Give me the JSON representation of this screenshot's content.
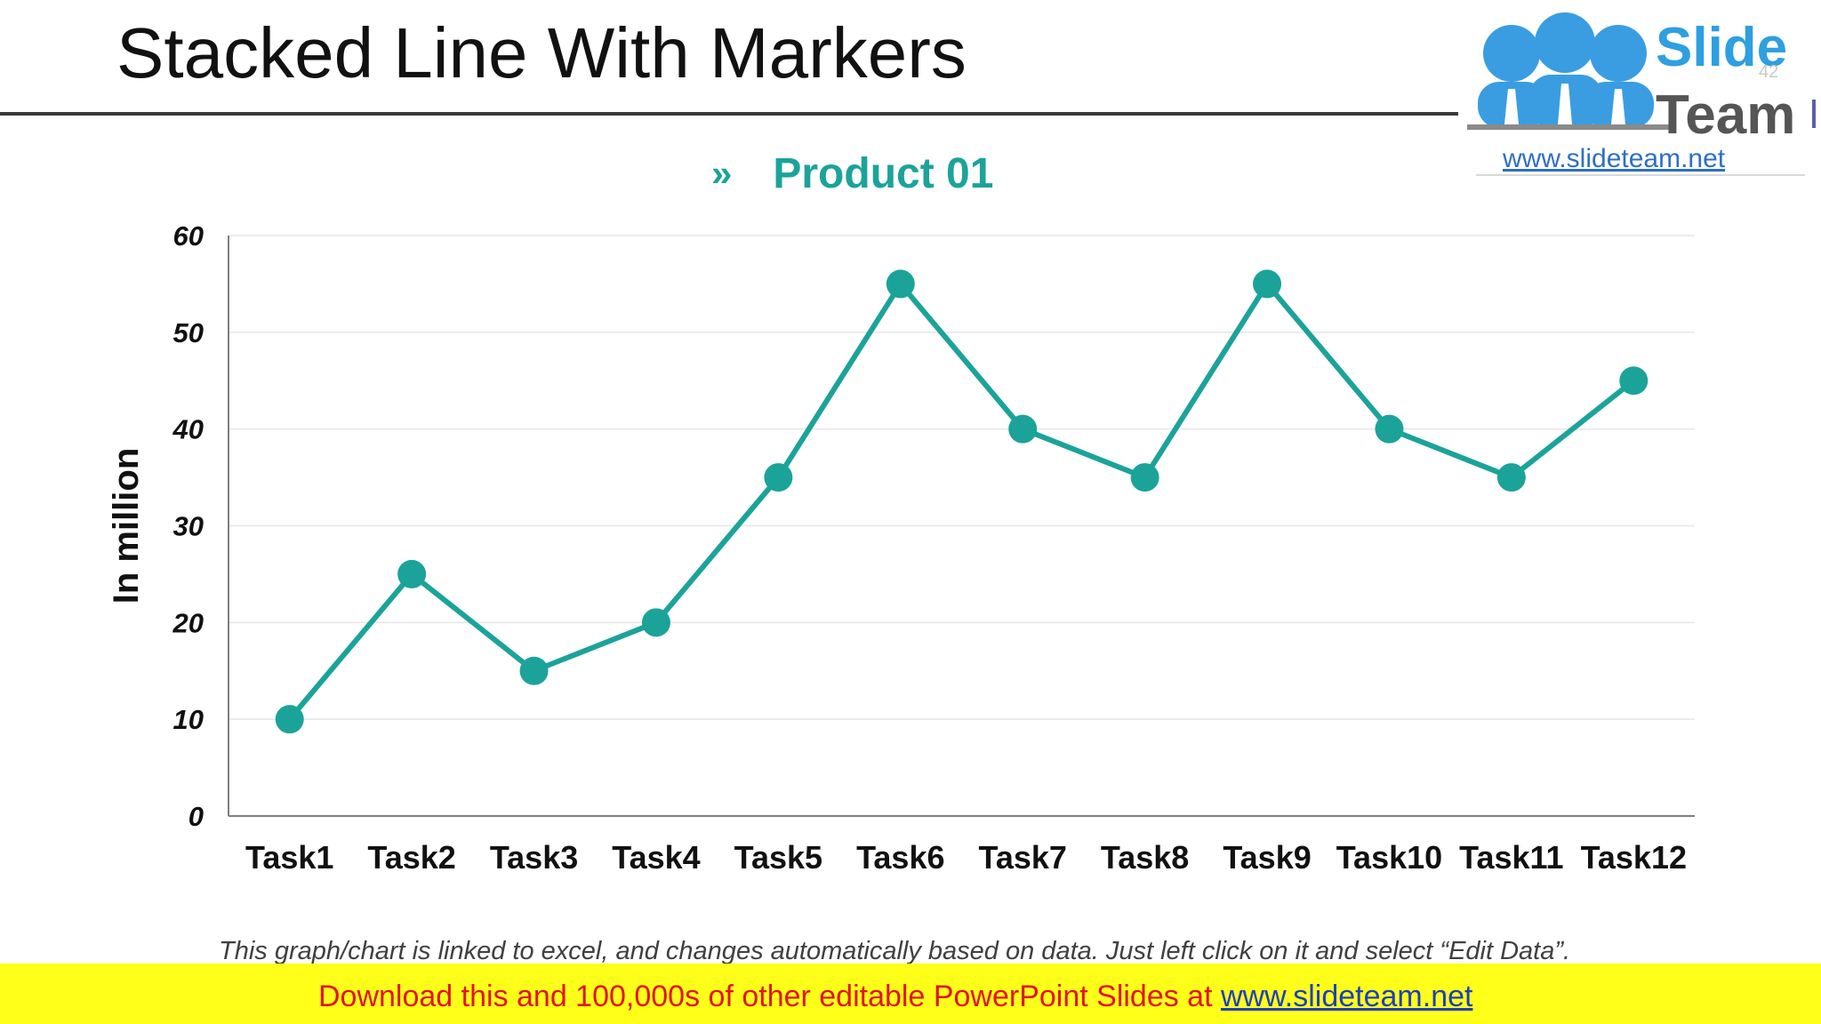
{
  "slide": {
    "title": "Stacked Line With Markers",
    "number": "42",
    "footnote": "This graph/chart is linked to excel, and changes automatically based on data. Just left click on it and select “Edit Data”."
  },
  "logo": {
    "word1": "Slide",
    "word2": "Team",
    "url": "www.slideteam.net"
  },
  "banner": {
    "text": "Download this and 100,000s of other editable PowerPoint Slides at",
    "link": "www.slideteam.net"
  },
  "colors": {
    "series": "#1ba39a",
    "grid": "#e6e6e6",
    "axis": "#7f7f7f",
    "banner_bg": "#ffff1a",
    "banner_text": "#e0161b"
  },
  "chart_data": {
    "type": "line",
    "title": "",
    "legend_position": "top",
    "legend_marker": "»",
    "xlabel": "",
    "ylabel": "In million",
    "ylim": [
      0,
      60
    ],
    "yticks": [
      0,
      10,
      20,
      30,
      40,
      50,
      60
    ],
    "grid": true,
    "categories": [
      "Task1",
      "Task2",
      "Task3",
      "Task4",
      "Task5",
      "Task6",
      "Task7",
      "Task8",
      "Task9",
      "Task10",
      "Task11",
      "Task12"
    ],
    "series": [
      {
        "name": "Product 01",
        "values": [
          10,
          25,
          15,
          20,
          35,
          55,
          40,
          35,
          55,
          40,
          35,
          45
        ],
        "markers": true
      }
    ]
  }
}
